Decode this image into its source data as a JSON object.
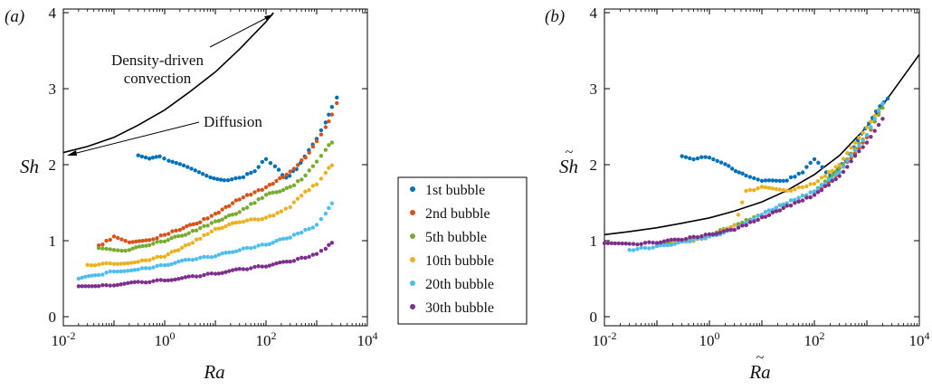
{
  "figure": {
    "panel_a_label": "(a)",
    "panel_b_label": "(b)",
    "annotation_top": "Density-driven",
    "annotation_bottom": "convection",
    "annotation_diffusion": "Diffusion"
  },
  "legend": {
    "items": [
      {
        "label": "1st bubble",
        "color": "#0072BD"
      },
      {
        "label": "2nd bubble",
        "color": "#D95319"
      },
      {
        "label": "5th bubble",
        "color": "#77AC30"
      },
      {
        "label": "10th bubble",
        "color": "#EDB120"
      },
      {
        "label": "20th bubble",
        "color": "#4DBEEE"
      },
      {
        "label": "30th bubble",
        "color": "#7E2F8E"
      }
    ]
  },
  "chart_data": [
    {
      "type": "scatter",
      "panel": "a",
      "xlabel": "Ra",
      "ylabel": "Sh",
      "xscale": "log",
      "xlim": [
        0.01,
        10000
      ],
      "ylim": [
        0,
        4
      ],
      "xticks": [
        "10",
        "10",
        "10",
        "10"
      ],
      "xtick_exponents": [
        "-2",
        "0",
        "2",
        "4"
      ],
      "yticks": [
        "0",
        "1",
        "2",
        "3",
        "4"
      ],
      "series": [
        {
          "name": "1st bubble",
          "color": "#0072BD",
          "x": [
            0.3,
            0.5,
            0.8,
            1.2,
            2,
            4,
            8,
            15,
            30,
            60,
            100,
            150,
            250,
            400,
            700,
            1000,
            1500,
            2000,
            2500
          ],
          "y": [
            2.12,
            2.08,
            2.1,
            2.05,
            2.0,
            1.92,
            1.84,
            1.8,
            1.82,
            1.92,
            2.08,
            1.98,
            1.82,
            1.95,
            2.2,
            2.35,
            2.55,
            2.75,
            2.88
          ]
        },
        {
          "name": "2nd bubble",
          "color": "#D95319",
          "x": [
            0.05,
            0.1,
            0.2,
            0.5,
            1,
            2,
            5,
            10,
            30,
            100,
            300,
            600,
            1000,
            1500,
            2000,
            2500
          ],
          "y": [
            0.93,
            1.05,
            0.98,
            1.0,
            1.08,
            1.15,
            1.25,
            1.35,
            1.55,
            1.7,
            1.9,
            2.1,
            2.3,
            2.5,
            2.65,
            2.8
          ]
        },
        {
          "name": "5th bubble",
          "color": "#77AC30",
          "x": [
            0.05,
            0.1,
            0.2,
            0.5,
            1,
            3,
            10,
            30,
            100,
            300,
            600,
            1000,
            1500,
            2000
          ],
          "y": [
            0.9,
            0.87,
            0.88,
            0.95,
            1.0,
            1.1,
            1.25,
            1.38,
            1.6,
            1.7,
            1.85,
            2.05,
            2.2,
            2.3
          ]
        },
        {
          "name": "10th bubble",
          "color": "#EDB120",
          "x": [
            0.03,
            0.1,
            0.3,
            1,
            3,
            10,
            30,
            100,
            200,
            300,
            500,
            1000,
            1500,
            2000
          ],
          "y": [
            0.68,
            0.7,
            0.72,
            0.8,
            0.95,
            1.15,
            1.25,
            1.3,
            1.38,
            1.45,
            1.6,
            1.75,
            1.9,
            2.0
          ]
        },
        {
          "name": "20th bubble",
          "color": "#4DBEEE",
          "x": [
            0.02,
            0.05,
            0.1,
            0.3,
            1,
            3,
            10,
            30,
            100,
            300,
            1000,
            1500,
            2000
          ],
          "y": [
            0.5,
            0.55,
            0.6,
            0.62,
            0.68,
            0.75,
            0.8,
            0.88,
            0.95,
            1.05,
            1.2,
            1.35,
            1.5
          ]
        },
        {
          "name": "30th bubble",
          "color": "#7E2F8E",
          "x": [
            0.02,
            0.05,
            0.1,
            0.3,
            1,
            3,
            10,
            30,
            100,
            300,
            1000,
            1500,
            2000
          ],
          "y": [
            0.4,
            0.4,
            0.42,
            0.45,
            0.48,
            0.52,
            0.57,
            0.62,
            0.67,
            0.73,
            0.82,
            0.9,
            0.97
          ]
        }
      ],
      "curves": [
        {
          "name": "Density-driven convection",
          "color": "#000000",
          "x": [
            0.01,
            0.03,
            0.1,
            0.3,
            1,
            3,
            10,
            30,
            100,
            140
          ],
          "y": [
            2.16,
            2.24,
            2.36,
            2.52,
            2.72,
            2.95,
            3.22,
            3.52,
            3.88,
            4.0
          ]
        }
      ]
    },
    {
      "type": "scatter",
      "panel": "b",
      "xlabel": "Ra",
      "ylabel": "Sh",
      "xscale": "log",
      "xlim": [
        0.01,
        10000
      ],
      "ylim": [
        0,
        4
      ],
      "xticks": [
        "10",
        "10",
        "10",
        "10"
      ],
      "xtick_exponents": [
        "-2",
        "0",
        "2",
        "4"
      ],
      "yticks": [
        "0",
        "1",
        "2",
        "3",
        "4"
      ],
      "series": [
        {
          "name": "1st bubble",
          "color": "#0072BD",
          "x": [
            0.3,
            0.5,
            1,
            2,
            5,
            10,
            30,
            60,
            100,
            200,
            400,
            800,
            1500,
            2500
          ],
          "y": [
            2.12,
            2.08,
            2.1,
            2.0,
            1.85,
            1.78,
            1.8,
            1.9,
            2.08,
            1.85,
            2.05,
            2.4,
            2.7,
            2.88
          ]
        },
        {
          "name": "2nd bubble",
          "color": "#D95319",
          "x": [
            0.1,
            0.3,
            1,
            3,
            10,
            30,
            100,
            300,
            1000,
            2000
          ],
          "y": [
            0.95,
            1.0,
            1.05,
            1.15,
            1.3,
            1.45,
            1.6,
            1.9,
            2.35,
            2.8
          ]
        },
        {
          "name": "5th bubble",
          "color": "#77AC30",
          "x": [
            0.1,
            0.3,
            1,
            3,
            10,
            30,
            100,
            300,
            1000,
            2000
          ],
          "y": [
            0.95,
            1.0,
            1.08,
            1.2,
            1.35,
            1.5,
            1.65,
            1.95,
            2.4,
            2.75
          ]
        },
        {
          "name": "10th bubble",
          "color": "#EDB120",
          "x": [
            0.2,
            0.5,
            1,
            3,
            5,
            10,
            30,
            100,
            300,
            1000,
            2000
          ],
          "y": [
            1.0,
            1.0,
            1.05,
            1.2,
            1.65,
            1.7,
            1.65,
            1.75,
            2.0,
            2.5,
            2.8
          ]
        },
        {
          "name": "20th bubble",
          "color": "#4DBEEE",
          "x": [
            0.03,
            0.1,
            0.3,
            1,
            3,
            10,
            30,
            100,
            300,
            1000,
            2000
          ],
          "y": [
            0.88,
            0.92,
            0.98,
            1.05,
            1.15,
            1.35,
            1.5,
            1.65,
            1.9,
            2.4,
            2.8
          ]
        },
        {
          "name": "30th bubble",
          "color": "#7E2F8E",
          "x": [
            0.01,
            0.03,
            0.1,
            0.3,
            1,
            3,
            10,
            30,
            100,
            300,
            1000,
            2000
          ],
          "y": [
            0.97,
            0.95,
            0.98,
            1.02,
            1.08,
            1.15,
            1.3,
            1.45,
            1.6,
            1.85,
            2.3,
            2.6
          ]
        }
      ],
      "curves": [
        {
          "name": "",
          "color": "#000000",
          "x": [
            0.01,
            0.03,
            0.1,
            0.3,
            1,
            3,
            10,
            30,
            100,
            300,
            1000,
            3000,
            10000
          ],
          "y": [
            1.08,
            1.12,
            1.17,
            1.23,
            1.3,
            1.39,
            1.51,
            1.66,
            1.87,
            2.12,
            2.5,
            2.95,
            3.45
          ]
        }
      ]
    }
  ]
}
